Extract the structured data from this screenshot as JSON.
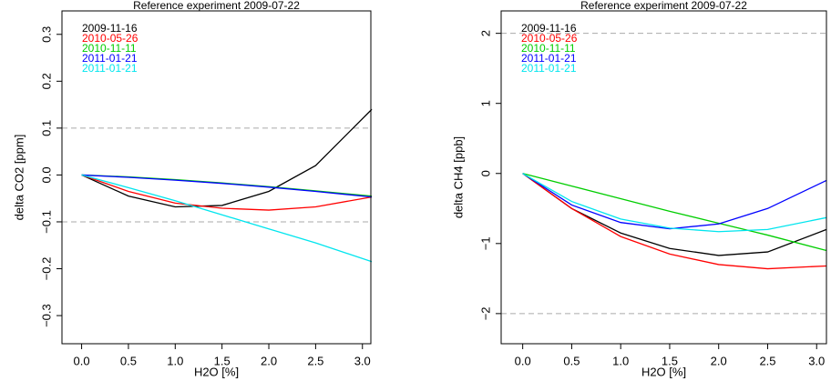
{
  "chart_data": [
    {
      "type": "line",
      "title": "Reference experiment 2009-07-22",
      "x_label": "H2O [%]",
      "y_label": "delta CO2 [ppm]",
      "x": [
        0,
        0.5,
        1.0,
        1.5,
        2.0,
        2.5,
        3.1
      ],
      "series": [
        {
          "name": "2009-11-16",
          "color": "#000000",
          "values": [
            0,
            -0.045,
            -0.068,
            -0.065,
            -0.035,
            0.02,
            0.14
          ]
        },
        {
          "name": "2010-05-26",
          "color": "#ff0000",
          "values": [
            0,
            -0.035,
            -0.06,
            -0.071,
            -0.075,
            -0.068,
            -0.047
          ]
        },
        {
          "name": "2010-11-11",
          "color": "#00cd00",
          "values": [
            0,
            -0.004,
            -0.01,
            -0.017,
            -0.025,
            -0.034,
            -0.045
          ]
        },
        {
          "name": "2011-01-21",
          "color": "#0000ff",
          "values": [
            0,
            -0.005,
            -0.011,
            -0.018,
            -0.026,
            -0.035,
            -0.047
          ]
        },
        {
          "name": "2011-01-21",
          "color": "#00e5ee",
          "values": [
            0,
            -0.027,
            -0.055,
            -0.085,
            -0.115,
            -0.145,
            -0.185
          ]
        }
      ],
      "reference_lines": [
        -0.1,
        0.1
      ],
      "xlim": [
        -0.21,
        3.09
      ],
      "ylim": [
        -0.36,
        0.35
      ],
      "xticks": [
        {
          "value": 0,
          "label": "0.0"
        },
        0.5,
        {
          "value": 1,
          "label": "1.0"
        },
        1.5,
        {
          "value": 2,
          "label": "2.0"
        },
        2.5,
        {
          "value": 3,
          "label": "3.0"
        }
      ],
      "yticks": [
        {
          "value": -0.3,
          "label": "−0.3"
        },
        {
          "value": -0.2,
          "label": "−0.2"
        },
        {
          "value": -0.1,
          "label": "−0.1"
        },
        {
          "value": 0,
          "label": "0.0"
        },
        0.1,
        0.2,
        0.3
      ],
      "legend": "top-left"
    },
    {
      "type": "line",
      "title": "Reference experiment 2009-07-22",
      "x_label": "H2O [%]",
      "y_label": "delta CH4 [ppb]",
      "x": [
        0,
        0.5,
        1.0,
        1.5,
        2.0,
        2.5,
        3.1
      ],
      "series": [
        {
          "name": "2009-11-16",
          "color": "#000000",
          "values": [
            0,
            -0.5,
            -0.85,
            -1.07,
            -1.17,
            -1.12,
            -0.8
          ]
        },
        {
          "name": "2010-05-26",
          "color": "#ff0000",
          "values": [
            0,
            -0.5,
            -0.9,
            -1.15,
            -1.3,
            -1.36,
            -1.32
          ]
        },
        {
          "name": "2010-11-11",
          "color": "#00cd00",
          "values": [
            0,
            -0.18,
            -0.36,
            -0.54,
            -0.71,
            -0.88,
            -1.1
          ]
        },
        {
          "name": "2011-01-21",
          "color": "#0000ff",
          "values": [
            0,
            -0.45,
            -0.7,
            -0.79,
            -0.72,
            -0.5,
            -0.1
          ]
        },
        {
          "name": "2011-01-21",
          "color": "#00e5ee",
          "values": [
            0,
            -0.4,
            -0.65,
            -0.78,
            -0.83,
            -0.8,
            -0.63
          ]
        }
      ],
      "reference_lines": [
        -2,
        2
      ],
      "xlim": [
        -0.22,
        3.1
      ],
      "ylim": [
        -2.43,
        2.32
      ],
      "xticks": [
        {
          "value": 0,
          "label": "0.0"
        },
        0.5,
        {
          "value": 1,
          "label": "1.0"
        },
        1.5,
        {
          "value": 2,
          "label": "2.0"
        },
        2.5,
        {
          "value": 3,
          "label": "3.0"
        }
      ],
      "yticks": [
        {
          "value": -2,
          "label": "−2"
        },
        {
          "value": -1,
          "label": "−1"
        },
        0,
        1,
        2
      ],
      "legend": "top-left"
    }
  ]
}
